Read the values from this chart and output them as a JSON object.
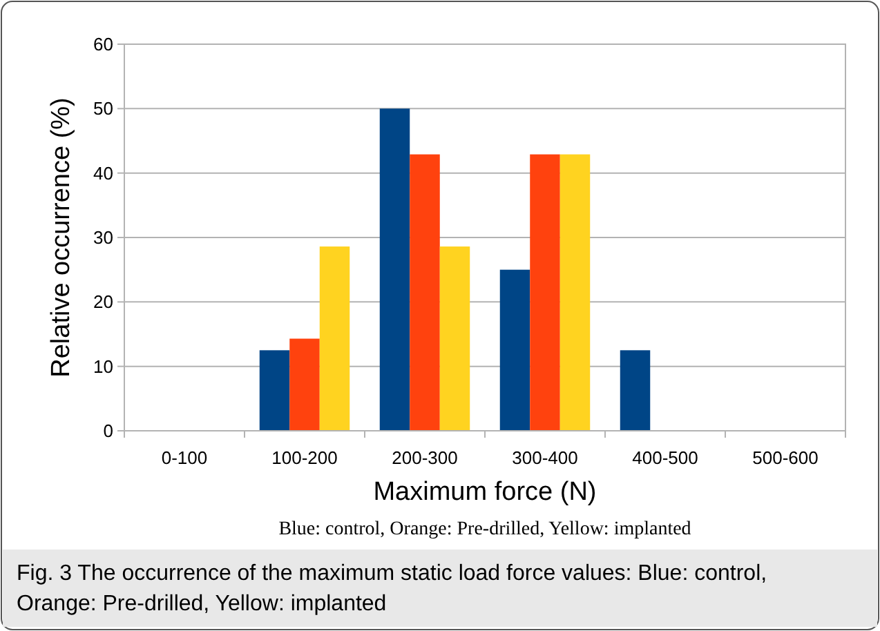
{
  "chart_data": {
    "type": "bar",
    "xlabel": "Maximum force (N)",
    "ylabel": "Relative occurrence (%)",
    "categories": [
      "0-100",
      "100-200",
      "200-300",
      "300-400",
      "400-500",
      "500-600"
    ],
    "series": [
      {
        "color": "#004586",
        "values": [
          0,
          12.5,
          50,
          25,
          12.5,
          0
        ]
      },
      {
        "color": "#ff420e",
        "values": [
          0,
          14.3,
          42.9,
          42.9,
          0,
          0
        ]
      },
      {
        "color": "#ffd320",
        "values": [
          0,
          28.6,
          28.6,
          42.9,
          0,
          0
        ]
      }
    ],
    "ylim": [
      0,
      60
    ],
    "yticks": [
      0,
      10,
      20,
      30,
      40,
      50,
      60
    ],
    "grid": "y",
    "annotations": [
      "Blue: control, Orange: Pre-drilled, Yellow: implanted",
      "Fig. 3 The occurrence of the maximum static load force values: Blue: control, Orange: Pre-drilled, Yellow: implanted"
    ]
  }
}
